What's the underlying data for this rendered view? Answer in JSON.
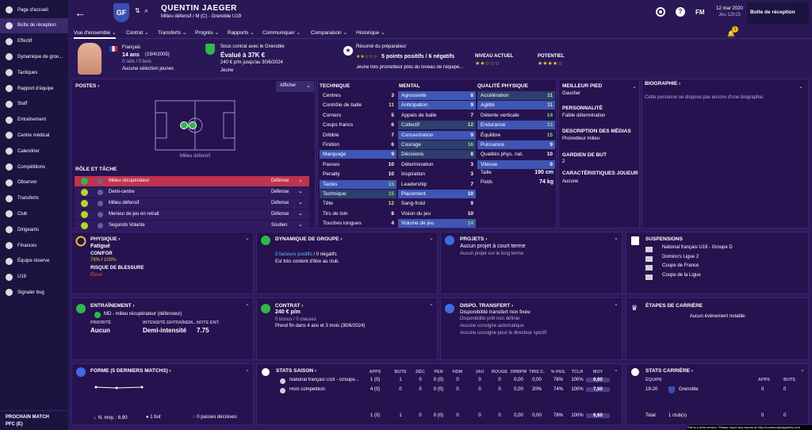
{
  "sidebar": {
    "items": [
      "Page d'accueil",
      "Boîte de réception",
      "Effectif",
      "Dynamique de grou...",
      "Tactiques",
      "Rapport d'équipe",
      "Staff",
      "Entraînement",
      "Centre médical",
      "Calendrier",
      "Compétitions",
      "Observer",
      "Transferts",
      "Club",
      "Dirigeants",
      "Finances",
      "Équipe réserve",
      "U19",
      "Signaler bug"
    ],
    "next_match_label": "PROCHAIN MATCH",
    "next_match_value": "PFC (E)"
  },
  "header": {
    "player_name": "QUENTIN JAEGER",
    "player_sub": "Milieu défensif / M (C) - Grenoble U19",
    "club_badge": "GF",
    "date": "12 mar 2020",
    "day_time": "Jeu 12h15",
    "fm_label": "FM",
    "inbox_button": "Boîte de réception",
    "notif_count": "1"
  },
  "tabs": [
    "Vue d'ensemble",
    "Contrat",
    "Transferts",
    "Progrès",
    "Rapports",
    "Communiquer",
    "Comparaison",
    "Historique"
  ],
  "info": {
    "nationality": "Français",
    "age": "14 ans",
    "dob": "(19/4/2005)",
    "sel_goals": "0 séls / 0 buts",
    "selection_status": "Aucune sélection jeunes",
    "contract_line": "Sous contrat avec le Grenoble",
    "value": "Évalué à 37K €",
    "wage": "240 € p/m jusqu'au 30/6/2024",
    "status": "Jeune",
    "summary_title": "Résumé du préparateur",
    "summary": "5 points positifs / 6 négatifs",
    "summary_note": "Jeune très prometteur près du niveau de l'équipe...",
    "level_label": "NIVEAU ACTUEL",
    "level_stars": "★★☆☆☆",
    "potential_label": "POTENTIEL",
    "potential_stars": "★★★★☆"
  },
  "positions": {
    "title": "POSTES",
    "select": "Afficher",
    "position_label": "Milieu défensif",
    "role_title": "RÔLE ET TÂCHE",
    "roles": [
      {
        "name": "Milieu récupérateur",
        "duty": "Défense",
        "color": "#2fb74a"
      },
      {
        "name": "Demi-centre",
        "duty": "Défense",
        "color": "#b9d42a"
      },
      {
        "name": "Milieu défensif",
        "duty": "Défense",
        "color": "#b9d42a"
      },
      {
        "name": "Meneur de jeu en retrait",
        "duty": "Défense",
        "color": "#b9d42a"
      },
      {
        "name": "Segundo Volante",
        "duty": "Soutien",
        "color": "#b9d42a"
      }
    ]
  },
  "technique": {
    "title": "TECHNIQUE",
    "rows": [
      [
        "Centres",
        "3"
      ],
      [
        "Contrôle de balle",
        "11"
      ],
      [
        "Corners",
        "5"
      ],
      [
        "Coups francs",
        "6"
      ],
      [
        "Dribble",
        "7"
      ],
      [
        "Finition",
        "6"
      ],
      [
        "Marquage",
        "9"
      ],
      [
        "Passes",
        "10"
      ],
      [
        "Penalty",
        "10"
      ],
      [
        "Tacles",
        "15"
      ],
      [
        "Technique",
        "15"
      ],
      [
        "Tête",
        "12"
      ],
      [
        "Tirs de loin",
        "8"
      ],
      [
        "Touches longues",
        "4"
      ]
    ]
  },
  "mental": {
    "title": "MENTAL",
    "rows": [
      [
        "Agressivité",
        "8"
      ],
      [
        "Anticipation",
        "9"
      ],
      [
        "Appels de balle",
        "7"
      ],
      [
        "Collectif",
        "12"
      ],
      [
        "Concentration",
        "9"
      ],
      [
        "Courage",
        "16"
      ],
      [
        "Décisions",
        "8"
      ],
      [
        "Détermination",
        "3"
      ],
      [
        "Inspiration",
        "3"
      ],
      [
        "Leadership",
        "7"
      ],
      [
        "Placement",
        "10"
      ],
      [
        "Sang-froid",
        "9"
      ],
      [
        "Vision du jeu",
        "10"
      ],
      [
        "Volume de jeu",
        "14"
      ]
    ]
  },
  "physical": {
    "title": "QUALITÉ PHYSIQUE",
    "rows": [
      [
        "Accélération",
        "11"
      ],
      [
        "Agilité",
        "11"
      ],
      [
        "Détente verticale",
        "14"
      ],
      [
        "Endurance",
        "13"
      ],
      [
        "Équilibre",
        "15"
      ],
      [
        "Puissance",
        "9"
      ],
      [
        "Qualités phys. nat.",
        "10"
      ],
      [
        "Vitesse",
        "9"
      ]
    ],
    "height_label": "Taille",
    "height": "190 cm",
    "weight_label": "Poids",
    "weight": "74 kg"
  },
  "details": {
    "foot_label": "MEILLEUR PIED",
    "foot": "Gaucher",
    "personality_label": "PERSONNALITÉ",
    "personality": "Faible détermination",
    "media_label": "DESCRIPTION DES MÉDIAS",
    "media": "Prometteur milieu",
    "gk_label": "GARDIEN DE BUT",
    "gk": "2",
    "traits_label": "CARACTÉRISTIQUES JOUEUR",
    "traits": "Aucune"
  },
  "bio": {
    "title": "BIOGRAPHIE",
    "text": "Cette personne ne dispose pas encore d'une biographie."
  },
  "physique": {
    "title": "PHYSIQUE",
    "status": "Fatigué",
    "conf_label": "CON/FOR",
    "conf": "76%",
    "for": "100%",
    "risk_label": "RISQUE DE BLESSURE",
    "risk": "Élevé"
  },
  "dynamics": {
    "title": "DYNAMIQUE DE GROUPE",
    "factors": "5 facteurs positifs",
    "negatives": "0 négatifs",
    "note": "Est très content d'être au club."
  },
  "projects": {
    "title": "PROJETS",
    "main": "Aucun projet à court terme",
    "sub": "Aucun projet sur le long terme"
  },
  "suspensions": {
    "title": "SUSPENSIONS",
    "items": [
      "National français U19 - Groupe D",
      "Domino's Ligue 2",
      "Coupe de France",
      "Coupe de la Ligue"
    ]
  },
  "training": {
    "title": "ENTRAÎNEMENT",
    "role": "MD - milieu récupérateur (défenseur)",
    "priority_label": "PRIORITÉ",
    "priority": "Aucun",
    "intensity_label": "INTENSITÉ ENTRAÎNEM...",
    "intensity": "Demi-intensité",
    "note_label": "NOTE ENT.",
    "note": "7.75"
  },
  "contract": {
    "title": "CONTRAT",
    "wage": "240 € p/m",
    "bonus": "0 bonus / 0 clauses",
    "ends": "Prend fin dans 4 ans et 3 mois (30/6/2024)"
  },
  "transfer": {
    "title": "DISPO. TRANSFERT",
    "status": "Disponibilité transfert non fixée",
    "l1": "Disponibilité prêt non définie",
    "l2": "Aucune consigne automatique",
    "l3": "Aucune consigne pour le directeur sportif"
  },
  "career": {
    "title": "ÉTAPES DE CARRIÈRE",
    "text": "Aucun évènement notable."
  },
  "form": {
    "title": "FORME (5 DERNIERS MATCHS)",
    "avg": "N. moy. : 6,90",
    "goals": "1 but",
    "assists": "0 passes décisives"
  },
  "season": {
    "title": "STATS SAISON",
    "headers": [
      "APPS",
      "BUTS",
      "DÉC",
      "PEN",
      "HDM",
      "JAU",
      "ROUGE",
      "DRBPM",
      "TIRS C.",
      "% PAS.",
      "TCLR",
      "MOY"
    ],
    "rows": [
      {
        "name": "National français U19 - Groupe...",
        "vals": [
          "1 (0)",
          "1",
          "0",
          "0 (0)",
          "0",
          "0",
          "0",
          "0,00",
          "0,00",
          "78%",
          "100%",
          "6,60"
        ]
      },
      {
        "name": "Hors compétition",
        "vals": [
          "4 (0)",
          "0",
          "0",
          "0 (0)",
          "0",
          "0",
          "0",
          "0,00",
          "20%",
          "74%",
          "100%",
          "7,00"
        ]
      }
    ],
    "total": [
      "1 (0)",
      "1",
      "0",
      "0 (0)",
      "0",
      "0",
      "0",
      "0,00",
      "0,00",
      "78%",
      "100%",
      "6,60"
    ]
  },
  "career_stats": {
    "title": "STATS CARRIÈRE",
    "team_label": "ÉQUIPE",
    "apps_label": "APPS",
    "goals_label": "BUTS",
    "season": "19-20",
    "club": "Grenoble",
    "apps": "0",
    "goals": "0",
    "total_label": "Total",
    "total_clubs": "1 club(s)",
    "total_apps": "0",
    "total_goals": "0"
  },
  "beta_note": "This is a beta version. Please report any issues at http://community.sigames.com"
}
